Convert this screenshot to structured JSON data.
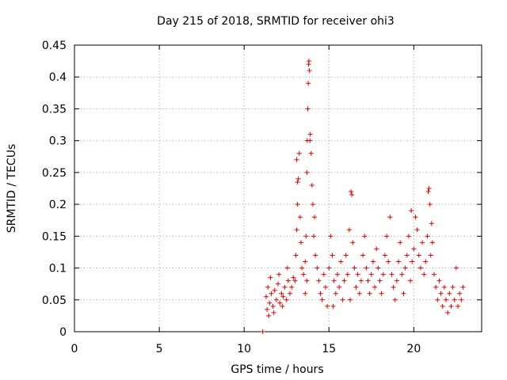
{
  "chart_data": {
    "type": "scatter",
    "title": "Day 215 of 2018, SRMTID for receiver ohi3",
    "xlabel": "GPS time / hours",
    "ylabel": "SRMTID / TECUs",
    "xlim": [
      0,
      24
    ],
    "ylim": [
      0,
      0.45
    ],
    "xticks": [
      0,
      5,
      10,
      15,
      20
    ],
    "xtick_labels": [
      "0",
      "5",
      "10",
      "15",
      "20"
    ],
    "yticks": [
      0,
      0.05,
      0.1,
      0.15,
      0.2,
      0.25,
      0.3,
      0.35,
      0.4,
      0.45
    ],
    "ytick_labels": [
      "0",
      "0.05",
      "0.1",
      "0.15",
      "0.2",
      "0.25",
      "0.3",
      "0.35",
      "0.4",
      "0.45"
    ],
    "grid": true,
    "marker": "+",
    "color": "#dd0000",
    "series": [
      {
        "name": "SRMTID",
        "points": [
          [
            11.1,
            0.0
          ],
          [
            11.3,
            0.055
          ],
          [
            11.4,
            0.07
          ],
          [
            11.5,
            0.045
          ],
          [
            11.6,
            0.06
          ],
          [
            11.7,
            0.04
          ],
          [
            11.8,
            0.065
          ],
          [
            11.9,
            0.05
          ],
          [
            12.0,
            0.075
          ],
          [
            12.1,
            0.045
          ],
          [
            12.2,
            0.06
          ],
          [
            12.3,
            0.055
          ],
          [
            12.4,
            0.07
          ],
          [
            12.5,
            0.05
          ],
          [
            12.6,
            0.08
          ],
          [
            12.7,
            0.06
          ],
          [
            12.8,
            0.07
          ],
          [
            12.9,
            0.085
          ],
          [
            11.35,
            0.035
          ],
          [
            11.55,
            0.085
          ],
          [
            11.75,
            0.03
          ],
          [
            12.05,
            0.09
          ],
          [
            12.25,
            0.04
          ],
          [
            12.55,
            0.1
          ],
          [
            11.45,
            0.025
          ],
          [
            13.0,
            0.08
          ],
          [
            13.05,
            0.12
          ],
          [
            13.1,
            0.16
          ],
          [
            13.15,
            0.2
          ],
          [
            13.2,
            0.24
          ],
          [
            13.25,
            0.28
          ],
          [
            13.3,
            0.18
          ],
          [
            13.35,
            0.14
          ],
          [
            13.4,
            0.1
          ],
          [
            13.5,
            0.09
          ],
          [
            13.6,
            0.11
          ],
          [
            13.65,
            0.15
          ],
          [
            13.7,
            0.25
          ],
          [
            13.72,
            0.3
          ],
          [
            13.75,
            0.35
          ],
          [
            13.78,
            0.39
          ],
          [
            13.8,
            0.42
          ],
          [
            13.82,
            0.425
          ],
          [
            13.85,
            0.41
          ],
          [
            13.88,
            0.3
          ],
          [
            13.9,
            0.31
          ],
          [
            13.95,
            0.28
          ],
          [
            14.0,
            0.23
          ],
          [
            14.05,
            0.2
          ],
          [
            14.1,
            0.15
          ],
          [
            14.2,
            0.12
          ],
          [
            14.3,
            0.1
          ],
          [
            14.4,
            0.08
          ],
          [
            14.5,
            0.06
          ],
          [
            14.6,
            0.05
          ],
          [
            14.7,
            0.09
          ],
          [
            14.8,
            0.07
          ],
          [
            14.9,
            0.04
          ],
          [
            13.1,
            0.27
          ],
          [
            13.15,
            0.235
          ],
          [
            13.6,
            0.06
          ],
          [
            13.7,
            0.08
          ],
          [
            14.15,
            0.18
          ],
          [
            15.0,
            0.1
          ],
          [
            15.1,
            0.15
          ],
          [
            15.2,
            0.12
          ],
          [
            15.3,
            0.08
          ],
          [
            15.4,
            0.06
          ],
          [
            15.5,
            0.09
          ],
          [
            15.6,
            0.07
          ],
          [
            15.7,
            0.11
          ],
          [
            15.8,
            0.05
          ],
          [
            15.9,
            0.08
          ],
          [
            16.0,
            0.12
          ],
          [
            16.1,
            0.09
          ],
          [
            16.2,
            0.16
          ],
          [
            16.3,
            0.22
          ],
          [
            16.35,
            0.215
          ],
          [
            16.4,
            0.14
          ],
          [
            16.5,
            0.1
          ],
          [
            16.6,
            0.07
          ],
          [
            16.7,
            0.09
          ],
          [
            16.8,
            0.06
          ],
          [
            16.9,
            0.08
          ],
          [
            17.0,
            0.12
          ],
          [
            17.1,
            0.15
          ],
          [
            17.2,
            0.1
          ],
          [
            17.3,
            0.08
          ],
          [
            17.4,
            0.06
          ],
          [
            17.5,
            0.09
          ],
          [
            17.6,
            0.11
          ],
          [
            17.7,
            0.07
          ],
          [
            17.8,
            0.13
          ],
          [
            17.9,
            0.1
          ],
          [
            18.0,
            0.08
          ],
          [
            18.1,
            0.06
          ],
          [
            18.2,
            0.09
          ],
          [
            18.3,
            0.12
          ],
          [
            18.4,
            0.15
          ],
          [
            18.5,
            0.11
          ],
          [
            18.6,
            0.18
          ],
          [
            18.7,
            0.09
          ],
          [
            18.8,
            0.07
          ],
          [
            18.9,
            0.05
          ],
          [
            19.0,
            0.08
          ],
          [
            19.1,
            0.11
          ],
          [
            19.2,
            0.14
          ],
          [
            19.3,
            0.09
          ],
          [
            19.4,
            0.06
          ],
          [
            19.5,
            0.1
          ],
          [
            19.6,
            0.12
          ],
          [
            19.7,
            0.15
          ],
          [
            19.8,
            0.08
          ],
          [
            19.9,
            0.11
          ],
          [
            20.0,
            0.13
          ],
          [
            20.1,
            0.18
          ],
          [
            20.2,
            0.16
          ],
          [
            20.3,
            0.12
          ],
          [
            20.4,
            0.1
          ],
          [
            20.5,
            0.14
          ],
          [
            20.6,
            0.09
          ],
          [
            20.7,
            0.11
          ],
          [
            20.8,
            0.15
          ],
          [
            20.85,
            0.22
          ],
          [
            20.9,
            0.225
          ],
          [
            20.95,
            0.2
          ],
          [
            21.0,
            0.12
          ],
          [
            21.1,
            0.14
          ],
          [
            21.2,
            0.09
          ],
          [
            21.3,
            0.07
          ],
          [
            21.4,
            0.05
          ],
          [
            21.5,
            0.08
          ],
          [
            21.6,
            0.06
          ],
          [
            21.7,
            0.04
          ],
          [
            21.8,
            0.07
          ],
          [
            21.9,
            0.05
          ],
          [
            22.0,
            0.03
          ],
          [
            22.1,
            0.06
          ],
          [
            22.2,
            0.04
          ],
          [
            22.3,
            0.07
          ],
          [
            22.4,
            0.05
          ],
          [
            22.5,
            0.1
          ],
          [
            22.6,
            0.04
          ],
          [
            22.7,
            0.06
          ],
          [
            22.8,
            0.05
          ],
          [
            22.9,
            0.07
          ],
          [
            21.05,
            0.17
          ],
          [
            15.25,
            0.04
          ],
          [
            16.25,
            0.05
          ],
          [
            19.85,
            0.19
          ]
        ]
      }
    ]
  }
}
